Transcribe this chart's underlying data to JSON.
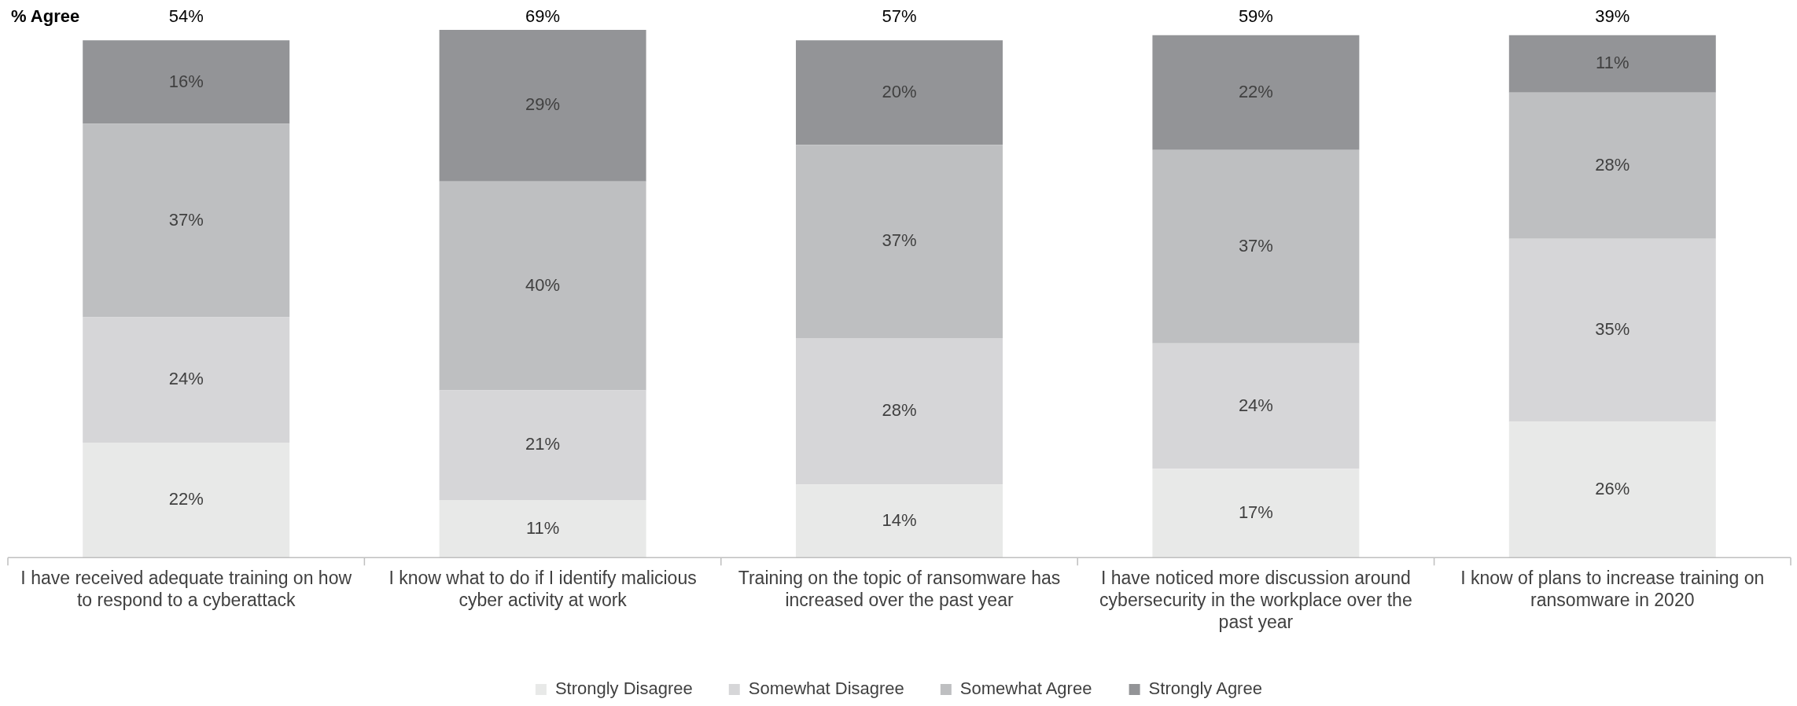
{
  "chart_data": {
    "type": "bar",
    "stacked": true,
    "legend": "bottom",
    "grid": false,
    "categories": [
      "I have received adequate training on how to respond to a cyberattack",
      "I know what to do if I identify malicious cyber activity at work",
      "Training on the topic of ransomware has increased over the past year",
      "I have noticed more discussion around cybersecurity in the workplace over the past year",
      "I know of plans to increase training on ransomware in 2020"
    ],
    "series": [
      {
        "name": "Strongly Disagree",
        "color": "#e8e9e8",
        "values": [
          22,
          11,
          14,
          17,
          26
        ],
        "value_labels": [
          "22%",
          "11%",
          "14%",
          "17%",
          "26%"
        ]
      },
      {
        "name": "Somewhat Disagree",
        "color": "#d6d6d8",
        "values": [
          24,
          21,
          28,
          24,
          35
        ],
        "value_labels": [
          "24%",
          "21%",
          "28%",
          "24%",
          "35%"
        ]
      },
      {
        "name": "Somewhat Agree",
        "color": "#bebfc1",
        "values": [
          37,
          40,
          37,
          37,
          28
        ],
        "value_labels": [
          "37%",
          "40%",
          "37%",
          "37%",
          "28%"
        ]
      },
      {
        "name": "Strongly Agree",
        "color": "#939497",
        "values": [
          16,
          29,
          20,
          22,
          11
        ],
        "value_labels": [
          "16%",
          "29%",
          "20%",
          "22%",
          "11%"
        ]
      }
    ],
    "annotations": [
      "% Agree",
      "54%",
      "69%",
      "57%",
      "59%",
      "39%"
    ]
  }
}
